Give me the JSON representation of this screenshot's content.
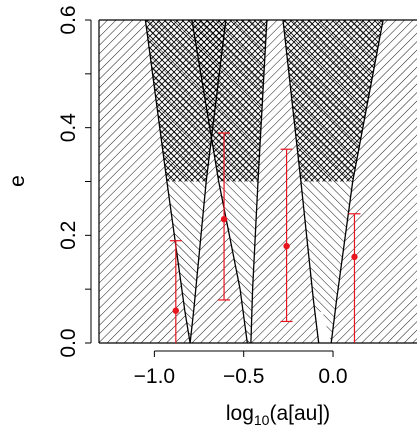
{
  "chart_data": {
    "type": "scatter",
    "title": "",
    "xlabel": "log10(a[au])",
    "xlabel_parts": {
      "prefix": "log",
      "subscript": "10",
      "suffix": "(a[au])"
    },
    "ylabel": "e",
    "xlim": [
      -1.31,
      0.47
    ],
    "ylim": [
      0.0,
      0.6
    ],
    "grid": false,
    "legend": "none",
    "x_ticks": [
      -1.0,
      -0.5,
      0.0
    ],
    "x_tick_labels": [
      "−1.0",
      "−0.5",
      "0.0"
    ],
    "y_ticks": [
      0.0,
      0.2,
      0.4,
      0.6
    ],
    "y_tick_labels": [
      "0.0",
      "0.2",
      "0.4",
      "0.6"
    ],
    "series": [
      {
        "marker_color": "#e8141e",
        "points": [
          {
            "x": -0.88,
            "y": 0.06,
            "ylow": 0.0,
            "yhigh": 0.19
          },
          {
            "x": -0.61,
            "y": 0.23,
            "ylow": 0.08,
            "yhigh": 0.39
          },
          {
            "x": -0.26,
            "y": 0.18,
            "ylow": 0.04,
            "yhigh": 0.36
          },
          {
            "x": 0.12,
            "y": 0.16,
            "ylow": 0.0,
            "yhigh": 0.24
          }
        ]
      }
    ],
    "unstable_regions": {
      "description_pattern": "hatched",
      "boundary_curves": [
        {
          "points": [
            [
              -1.05,
              0.6
            ],
            [
              -0.93,
              0.3
            ],
            [
              -0.83,
              0.06
            ],
            [
              -0.8,
              0.0
            ]
          ]
        },
        {
          "points": [
            [
              -0.6,
              0.6
            ],
            [
              -0.71,
              0.3
            ],
            [
              -0.78,
              0.06
            ],
            [
              -0.8,
              0.0
            ]
          ]
        },
        {
          "points": [
            [
              -0.37,
              0.6
            ],
            [
              -0.42,
              0.3
            ],
            [
              -0.45,
              0.1
            ],
            [
              -0.46,
              0.0
            ]
          ]
        },
        {
          "points": [
            [
              -0.79,
              0.6
            ],
            [
              -0.64,
              0.3
            ],
            [
              -0.52,
              0.1
            ],
            [
              -0.48,
              0.0
            ]
          ]
        },
        {
          "points": [
            [
              -0.28,
              0.6
            ],
            [
              -0.18,
              0.3
            ],
            [
              -0.11,
              0.08
            ],
            [
              -0.08,
              0.0
            ]
          ]
        },
        {
          "points": [
            [
              0.28,
              0.6
            ],
            [
              0.11,
              0.3
            ],
            [
              0.02,
              0.08
            ],
            [
              -0.01,
              0.0
            ]
          ]
        }
      ]
    },
    "colors": {
      "error_bars": "#e8141e",
      "hatch": "#000000",
      "axis": "#000000"
    }
  }
}
